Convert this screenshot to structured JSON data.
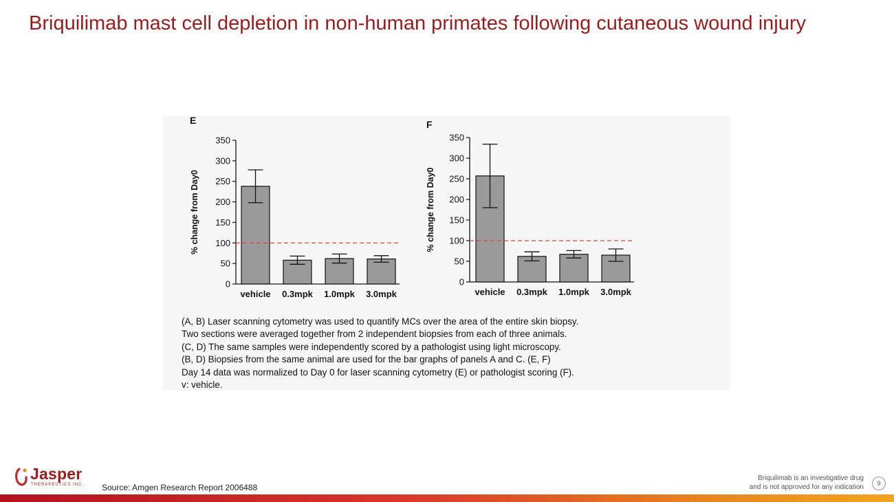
{
  "slide": {
    "title": "Briquilimab mast cell depletion in non-human primates following cutaneous wound injury",
    "source": "Source: Amgen Research Report 2006488",
    "disclaimer_line1": "Briquilimab  is an investigative drug",
    "disclaimer_line2": "and is not approved for any indication",
    "page_number": "9"
  },
  "logo": {
    "name": "Jasper",
    "tagline": "THERAPEUTICS INC."
  },
  "caption": [
    "(A, B) Laser scanning cytometry was used to quantify MCs over the area of the entire skin biopsy.",
    "Two sections were averaged together from 2 independent biopsies from each of three animals.",
    "(C, D)  The same samples were independently scored by a pathologist using light microscopy.",
    "(B, D)  Biopsies from the same animal are used for the bar graphs of panels A and C.  (E, F)",
    "Day 14 data was normalized to Day 0 for laser scanning cytometry (E) or pathologist scoring (F).",
    "v: vehicle."
  ],
  "colors": {
    "bar": "#9a9a9a",
    "reference_line": "#e8403a",
    "title": "#9b1c1c"
  },
  "chart_data": [
    {
      "type": "bar",
      "panel_label": "E",
      "title": "",
      "xlabel": "",
      "ylabel": "% change from Day0",
      "categories": [
        "vehicle",
        "0.3mpk",
        "1.0mpk",
        "3.0mpk"
      ],
      "values": [
        238,
        58,
        62,
        61
      ],
      "error": [
        40,
        10,
        11,
        8
      ],
      "ylim": [
        0,
        350
      ],
      "yticks": [
        0,
        50,
        100,
        150,
        200,
        250,
        300,
        350
      ],
      "reference_line": 100
    },
    {
      "type": "bar",
      "panel_label": "F",
      "title": "",
      "xlabel": "",
      "ylabel": "% change from Day0",
      "categories": [
        "vehicle",
        "0.3mpk",
        "1.0mpk",
        "3.0mpk"
      ],
      "values": [
        257,
        62,
        67,
        65
      ],
      "error": [
        77,
        11,
        9,
        15
      ],
      "ylim": [
        0,
        350
      ],
      "yticks": [
        0,
        50,
        100,
        150,
        200,
        250,
        300,
        350
      ],
      "reference_line": 100
    }
  ]
}
